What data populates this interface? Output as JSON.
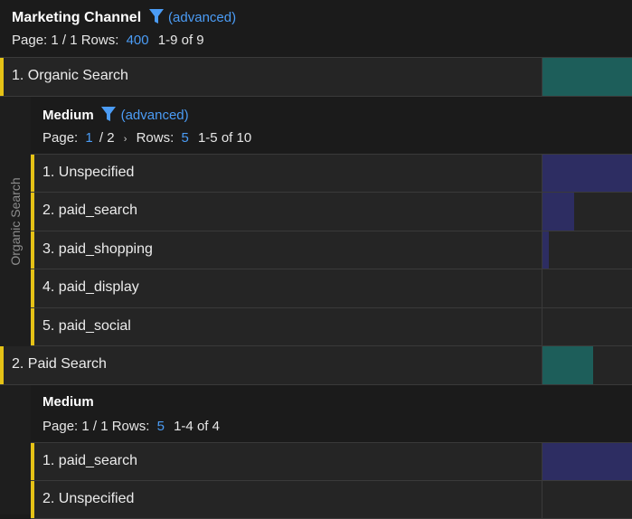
{
  "header": {
    "title": "Marketing Channel",
    "advanced": "(advanced)",
    "page_prefix": "Page: 1 / 1 Rows:",
    "rows": "400",
    "range": "1-9 of 9"
  },
  "rows": [
    {
      "label": "1.  Organic Search",
      "bar_fraction": 1.0
    },
    {
      "label": "2.  Paid Search",
      "bar_fraction": 0.57
    }
  ],
  "groups": [
    {
      "side_label": "Organic Search",
      "title": "Medium",
      "advanced": "(advanced)",
      "page_prefix": "Page:",
      "page_current": "1",
      "page_total": "/ 2",
      "rows_prefix": "Rows:",
      "rows": "5",
      "range": "1-5 of 10",
      "items": [
        {
          "label": "1.  Unspecified",
          "bar_fraction": 1.0
        },
        {
          "label": "2.  paid_search",
          "bar_fraction": 0.35
        },
        {
          "label": "3.  paid_shopping",
          "bar_fraction": 0.07
        },
        {
          "label": "4.  paid_display",
          "bar_fraction": 0.0
        },
        {
          "label": "5.  paid_social",
          "bar_fraction": 0.0
        }
      ]
    },
    {
      "title": "Medium",
      "page_prefix": "Page: 1 / 1 Rows:",
      "rows": "5",
      "range": "1-4 of 4",
      "items": [
        {
          "label": "1.  paid_search",
          "bar_fraction": 1.0
        },
        {
          "label": "2.  Unspecified",
          "bar_fraction": 0.0
        }
      ]
    }
  ],
  "colors": {
    "accent": "#e5c216",
    "channel_bar": "#1d5e5a",
    "medium_bar": "#2d2d62",
    "link": "#4b9cf5"
  }
}
